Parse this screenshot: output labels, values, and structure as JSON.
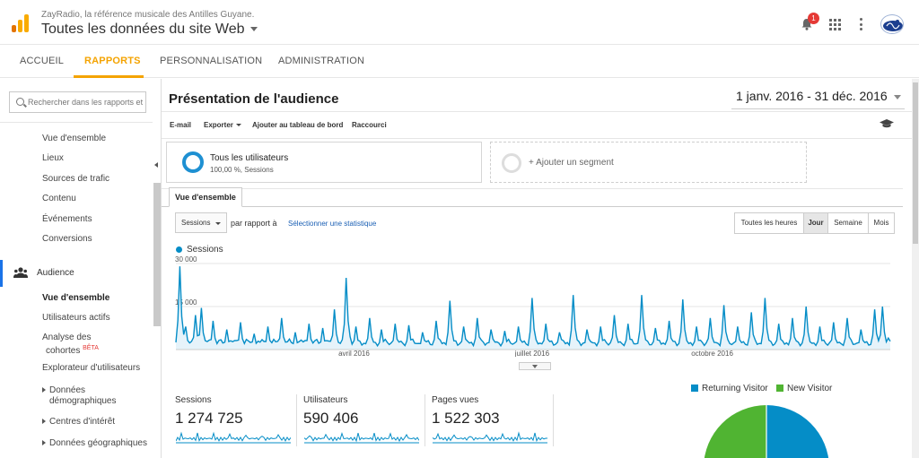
{
  "header": {
    "site_subtitle": "ZayRadio, la référence musicale des Antilles Guyane.",
    "site_title": "Toutes les données du site Web",
    "notification_count": "1",
    "brand_color": "#f4a300"
  },
  "nav": {
    "tabs": [
      {
        "label": "ACCUEIL"
      },
      {
        "label": "RAPPORTS"
      },
      {
        "label": "PERSONNALISATION"
      },
      {
        "label": "ADMINISTRATION"
      }
    ],
    "active": "RAPPORTS"
  },
  "sidebar": {
    "search_placeholder": "Rechercher dans les rapports et l'aide",
    "items": [
      {
        "label": "Vue d'ensemble"
      },
      {
        "label": "Lieux"
      },
      {
        "label": "Sources de trafic"
      },
      {
        "label": "Contenu"
      },
      {
        "label": "Événements"
      },
      {
        "label": "Conversions"
      }
    ],
    "audience_label": "Audience",
    "audience_items": [
      {
        "label": "Vue d'ensemble"
      },
      {
        "label": "Utilisateurs actifs"
      },
      {
        "label": "Analyse des"
      },
      {
        "label": "cohortes"
      },
      {
        "label": "BÊTA"
      },
      {
        "label": "Explorateur d'utilisateurs"
      },
      {
        "label": "Données"
      },
      {
        "label": "démographiques"
      },
      {
        "label": "Centres d'intérêt"
      },
      {
        "label": "Données géographiques"
      }
    ]
  },
  "main": {
    "title": "Présentation de l'audience",
    "date_range": "1 janv. 2016 - 31 déc. 2016",
    "toolbar": {
      "email": "E-mail",
      "export": "Exporter",
      "add_dashboard": "Ajouter au tableau de bord",
      "shortcut": "Raccourci"
    },
    "segment": {
      "name": "Tous les utilisateurs",
      "percent": "100,00 %, Sessions",
      "add": "+ Ajouter un segment"
    },
    "tab": "Vue d'ensemble",
    "metric_select": "Sessions",
    "compare_label": "par rapport à",
    "select_stat": "Sélectionner une statistique",
    "granularity": [
      "Toutes les heures",
      "Jour",
      "Semaine",
      "Mois"
    ],
    "granularity_active": "Jour",
    "kpis": [
      {
        "label": "Sessions",
        "value": "1 274 725"
      },
      {
        "label": "Utilisateurs",
        "value": "590 406"
      },
      {
        "label": "Pages vues",
        "value": "1 522 303"
      }
    ],
    "pie_legend": [
      {
        "label": "Returning Visitor",
        "color": "#058dc7"
      },
      {
        "label": "New Visitor",
        "color": "#50b432"
      }
    ]
  },
  "chart_data": {
    "type": "area",
    "title": "",
    "series": [
      {
        "name": "Sessions",
        "color": "#058dc7"
      }
    ],
    "ylim": [
      0,
      30000
    ],
    "yticks": [
      {
        "value": 30000,
        "label": "30 000"
      },
      {
        "value": 15000,
        "label": "15 000"
      }
    ],
    "xticks": [
      {
        "day": 91,
        "label": "avril 2016"
      },
      {
        "day": 182,
        "label": "juillet 2016"
      },
      {
        "day": 274,
        "label": "octobre 2016"
      }
    ],
    "x_start": "2016-01-01",
    "x_end": "2016-12-31",
    "peaks": [
      [
        2,
        29000
      ],
      [
        5,
        8000
      ],
      [
        10,
        12000
      ],
      [
        13,
        14500
      ],
      [
        19,
        10000
      ],
      [
        26,
        7000
      ],
      [
        33,
        9500
      ],
      [
        40,
        5500
      ],
      [
        47,
        8000
      ],
      [
        54,
        11000
      ],
      [
        61,
        6000
      ],
      [
        68,
        9000
      ],
      [
        75,
        7500
      ],
      [
        81,
        14000
      ],
      [
        87,
        25000
      ],
      [
        92,
        8000
      ],
      [
        99,
        11000
      ],
      [
        105,
        7000
      ],
      [
        112,
        9000
      ],
      [
        119,
        8500
      ],
      [
        126,
        6000
      ],
      [
        133,
        10000
      ],
      [
        140,
        17000
      ],
      [
        147,
        8000
      ],
      [
        154,
        11000
      ],
      [
        161,
        7000
      ],
      [
        168,
        6500
      ],
      [
        175,
        8000
      ],
      [
        182,
        18000
      ],
      [
        189,
        9000
      ],
      [
        196,
        6000
      ],
      [
        203,
        19000
      ],
      [
        210,
        7000
      ],
      [
        217,
        8000
      ],
      [
        224,
        12000
      ],
      [
        231,
        9000
      ],
      [
        238,
        19000
      ],
      [
        245,
        7500
      ],
      [
        252,
        10000
      ],
      [
        259,
        17500
      ],
      [
        266,
        8000
      ],
      [
        273,
        11000
      ],
      [
        280,
        15500
      ],
      [
        287,
        8000
      ],
      [
        294,
        13000
      ],
      [
        301,
        18000
      ],
      [
        308,
        9000
      ],
      [
        315,
        11000
      ],
      [
        322,
        15000
      ],
      [
        329,
        8000
      ],
      [
        336,
        9500
      ],
      [
        343,
        11000
      ],
      [
        350,
        7000
      ],
      [
        357,
        14000
      ],
      [
        361,
        15000
      ],
      [
        364,
        4000
      ]
    ],
    "baseline": 2500
  }
}
